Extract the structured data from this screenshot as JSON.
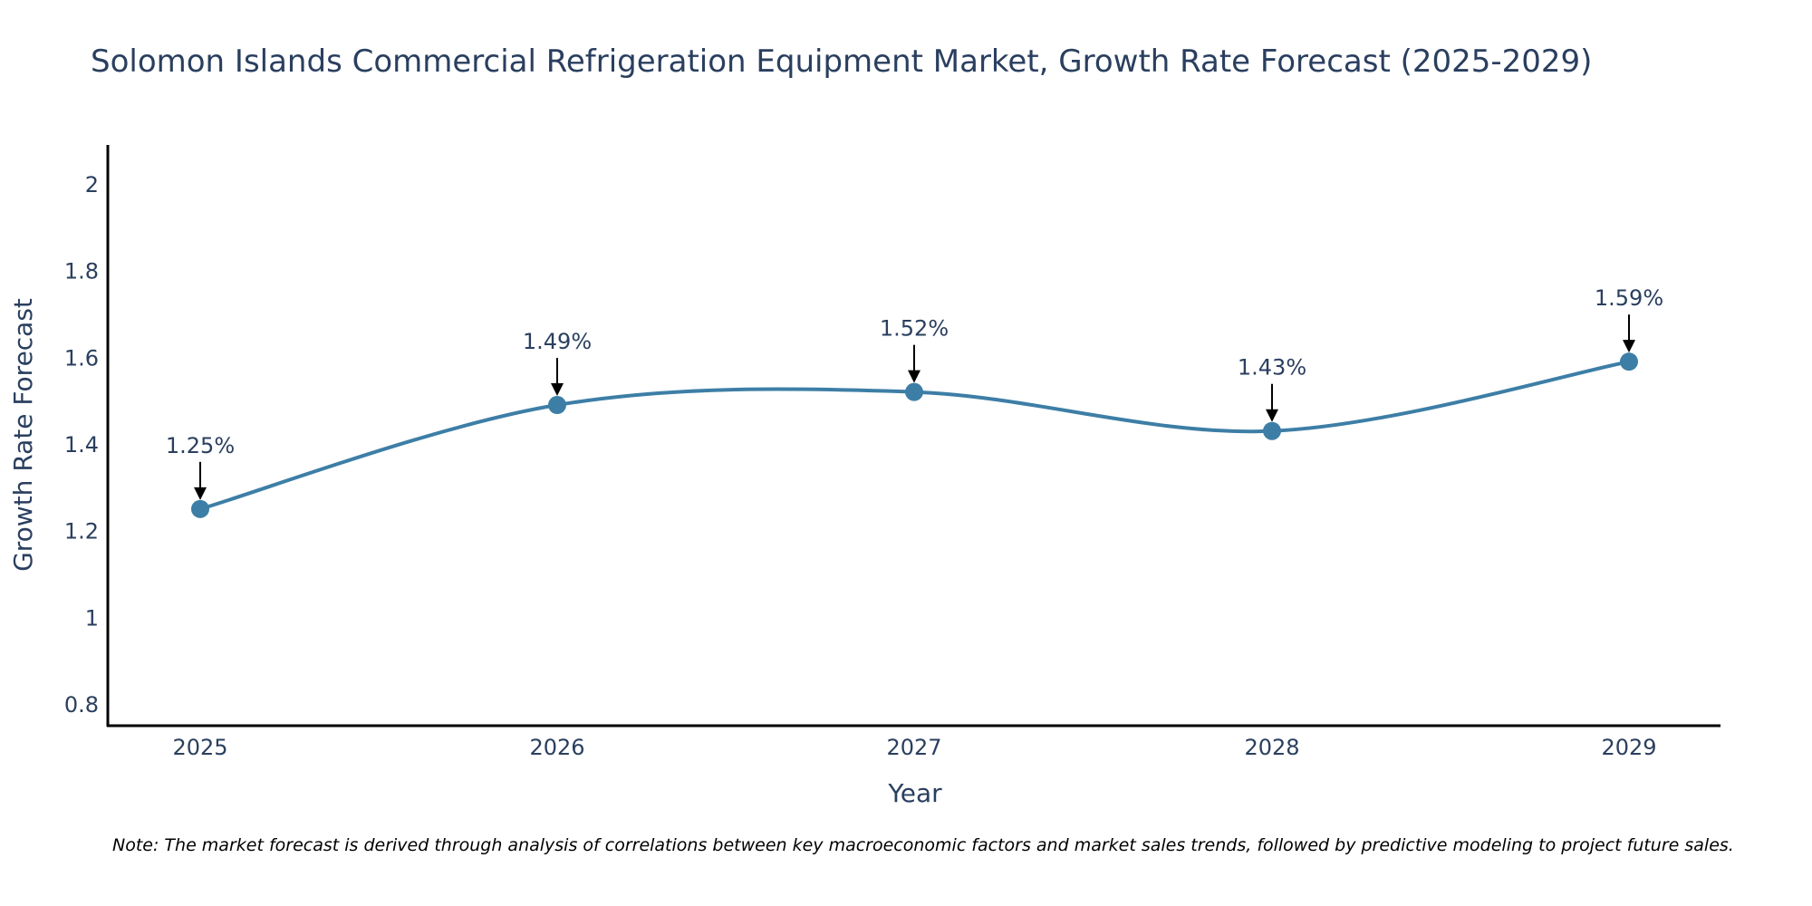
{
  "chart_data": {
    "type": "line",
    "title": "Solomon Islands Commercial Refrigeration Equipment Market, Growth Rate Forecast (2025-2029)",
    "xlabel": "Year",
    "ylabel": "Growth Rate Forecast",
    "categories": [
      "2025",
      "2026",
      "2027",
      "2028",
      "2029"
    ],
    "series": [
      {
        "name": "Growth Rate Forecast",
        "values": [
          1.25,
          1.49,
          1.52,
          1.43,
          1.59
        ],
        "data_labels": [
          "1.25%",
          "1.49%",
          "1.52%",
          "1.43%",
          "1.59%"
        ]
      }
    ],
    "ylim": [
      0.75,
      2.09
    ],
    "yticks": [
      0.8,
      1,
      1.2,
      1.4,
      1.6,
      1.8,
      2
    ],
    "ytick_labels": [
      "0.8",
      "1",
      "1.2",
      "1.4",
      "1.6",
      "1.8",
      "2"
    ],
    "grid": false,
    "line_shape": "spline",
    "colors": {
      "line": "#3d7ea6",
      "marker": "#3d7ea6",
      "arrow": "#000000",
      "text": "#2a3f5f",
      "axis": "#000000"
    },
    "note": "Note: The market forecast is derived through analysis of correlations between key macroeconomic factors and market sales trends, followed by predictive modeling to project future sales."
  }
}
